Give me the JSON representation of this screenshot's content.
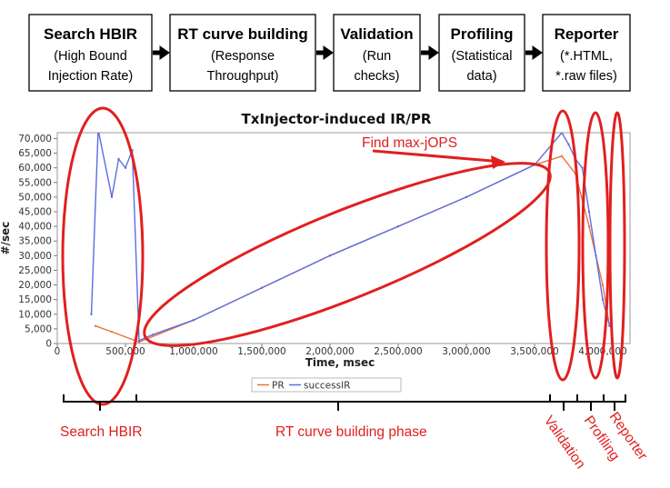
{
  "phases": [
    {
      "title": "Search HBIR",
      "lines": [
        "(High Bound",
        "Injection Rate)"
      ]
    },
    {
      "title": "RT curve building",
      "lines": [
        "(Response",
        "Throughput)"
      ]
    },
    {
      "title": "Validation",
      "lines": [
        "(Run",
        "checks)"
      ]
    },
    {
      "title": "Profiling",
      "lines": [
        "(Statistical",
        "data)"
      ]
    },
    {
      "title": "Reporter",
      "lines": [
        "(*.HTML,",
        "*.raw files)"
      ]
    }
  ],
  "chart_data": {
    "type": "line",
    "title": "TxInjector-induced IR/PR",
    "xlabel": "Time, msec",
    "ylabel": "#/sec",
    "xlim": [
      0,
      4200000
    ],
    "ylim": [
      0,
      72000
    ],
    "x_ticks": [
      0,
      500000,
      1000000,
      1500000,
      2000000,
      2500000,
      3000000,
      3500000,
      4000000
    ],
    "x_tick_labels": [
      "0",
      "500,000",
      "1,000,000",
      "1,500,000",
      "2,000,000",
      "2,500,000",
      "3,000,000",
      "3,500,000",
      "4,000,000"
    ],
    "y_ticks": [
      0,
      5000,
      10000,
      15000,
      20000,
      25000,
      30000,
      35000,
      40000,
      45000,
      50000,
      55000,
      60000,
      65000,
      70000
    ],
    "y_tick_labels": [
      "0",
      "5,000",
      "10,000",
      "15,000",
      "20,000",
      "25,000",
      "30,000",
      "35,000",
      "40,000",
      "45,000",
      "50,000",
      "55,000",
      "60,000",
      "65,000",
      "70,000"
    ],
    "legend": [
      "PR",
      "successIR"
    ],
    "legend_position": "bottom",
    "grid": false,
    "series": [
      {
        "name": "PR",
        "color": "#e8743b",
        "x": [
          280000,
          400000,
          600000,
          1000000,
          1500000,
          2000000,
          2500000,
          3000000,
          3500000,
          3700000,
          3800000,
          3900000,
          4000000,
          4050000
        ],
        "y": [
          6000,
          4000,
          500,
          8000,
          19000,
          30000,
          40000,
          50000,
          61000,
          64000,
          58000,
          40000,
          20000,
          6000
        ]
      },
      {
        "name": "successIR",
        "color": "#5b6ee1",
        "x": [
          250000,
          300000,
          400000,
          450000,
          500000,
          550000,
          600000,
          700000,
          1000000,
          1500000,
          2000000,
          2500000,
          3000000,
          3500000,
          3700000,
          3750000,
          3800000,
          3850000,
          3900000,
          3950000,
          4000000,
          4050000
        ],
        "y": [
          10000,
          73000,
          50000,
          63000,
          60000,
          66000,
          1000,
          3000,
          8000,
          19000,
          30000,
          40000,
          50000,
          61000,
          72000,
          68000,
          63000,
          60000,
          45000,
          30000,
          15000,
          6000
        ]
      }
    ]
  },
  "annotations": {
    "peak_label": "Find max-jOPS"
  },
  "timeline_labels": [
    "Search  HBIR",
    "RT curve building phase",
    "Validation",
    "Profiling",
    "Reporter"
  ],
  "colors": {
    "annotation": "#e0201f",
    "success": "#5b6ee1",
    "pr": "#e8743b"
  }
}
